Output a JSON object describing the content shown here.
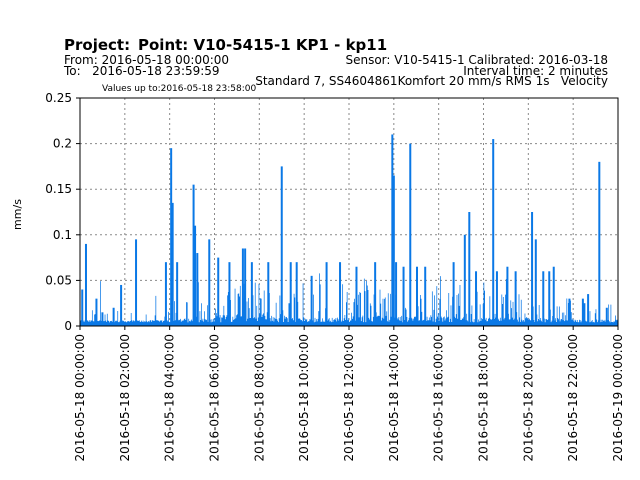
{
  "header": {
    "project_label": "Project:",
    "point_label": "Point: V10-5415-1 KP1 - kp11",
    "from_text": "From: 2016-05-18 00:00:00",
    "to_text": "To:   2016-05-18 23:59:59",
    "sensor_text": "Sensor: V10-5415-1  Calibrated:  2016-03-18",
    "interval_text": "Interval time: 2 minutes",
    "standard_text": "Standard 7, SS4604861Komfort 20 mm/s RMS 1s   Velocity",
    "values_up_to": "Values up to:2016-05-18 23:58:00"
  },
  "chart_data": {
    "type": "bar",
    "title": "",
    "ylabel": "mm/s",
    "xlabel": "",
    "ylim": [
      0,
      0.25
    ],
    "yticks": [
      "0",
      "0.05",
      "0.1",
      "0.15",
      "0.2",
      "0.25"
    ],
    "xticks": [
      "2016-05-18 00:00:00",
      "2016-05-18 02:00:00",
      "2016-05-18 04:00:00",
      "2016-05-18 06:00:00",
      "2016-05-18 08:00:00",
      "2016-05-18 10:00:00",
      "2016-05-18 12:00:00",
      "2016-05-18 14:00:00",
      "2016-05-18 16:00:00",
      "2016-05-18 18:00:00",
      "2016-05-18 20:00:00",
      "2016-05-18 22:00:00",
      "2016-05-19 00:00:00"
    ],
    "grid": true,
    "bar_color": "#0a78e6",
    "interval_minutes": 2,
    "peaks": [
      {
        "time": "2016-05-18 00:06:00",
        "value": 0.04
      },
      {
        "time": "2016-05-18 00:16:00",
        "value": 0.09
      },
      {
        "time": "2016-05-18 00:44:00",
        "value": 0.03
      },
      {
        "time": "2016-05-18 01:00:00",
        "value": 0.015
      },
      {
        "time": "2016-05-18 01:30:00",
        "value": 0.02
      },
      {
        "time": "2016-05-18 01:50:00",
        "value": 0.045
      },
      {
        "time": "2016-05-18 02:30:00",
        "value": 0.095
      },
      {
        "time": "2016-05-18 03:50:00",
        "value": 0.07
      },
      {
        "time": "2016-05-18 04:04:00",
        "value": 0.195
      },
      {
        "time": "2016-05-18 04:08:00",
        "value": 0.135
      },
      {
        "time": "2016-05-18 04:20:00",
        "value": 0.07
      },
      {
        "time": "2016-05-18 05:04:00",
        "value": 0.155
      },
      {
        "time": "2016-05-18 05:08:00",
        "value": 0.11
      },
      {
        "time": "2016-05-18 05:14:00",
        "value": 0.08
      },
      {
        "time": "2016-05-18 05:46:00",
        "value": 0.095
      },
      {
        "time": "2016-05-18 06:10:00",
        "value": 0.075
      },
      {
        "time": "2016-05-18 06:40:00",
        "value": 0.07
      },
      {
        "time": "2016-05-18 07:16:00",
        "value": 0.085
      },
      {
        "time": "2016-05-18 07:22:00",
        "value": 0.085
      },
      {
        "time": "2016-05-18 07:40:00",
        "value": 0.07
      },
      {
        "time": "2016-05-18 08:24:00",
        "value": 0.07
      },
      {
        "time": "2016-05-18 09:00:00",
        "value": 0.175
      },
      {
        "time": "2016-05-18 09:24:00",
        "value": 0.07
      },
      {
        "time": "2016-05-18 09:40:00",
        "value": 0.07
      },
      {
        "time": "2016-05-18 10:20:00",
        "value": 0.055
      },
      {
        "time": "2016-05-18 11:00:00",
        "value": 0.07
      },
      {
        "time": "2016-05-18 11:36:00",
        "value": 0.07
      },
      {
        "time": "2016-05-18 12:20:00",
        "value": 0.065
      },
      {
        "time": "2016-05-18 13:10:00",
        "value": 0.07
      },
      {
        "time": "2016-05-18 13:56:00",
        "value": 0.21
      },
      {
        "time": "2016-05-18 14:00:00",
        "value": 0.165
      },
      {
        "time": "2016-05-18 14:06:00",
        "value": 0.07
      },
      {
        "time": "2016-05-18 14:26:00",
        "value": 0.065
      },
      {
        "time": "2016-05-18 14:44:00",
        "value": 0.2
      },
      {
        "time": "2016-05-18 15:02:00",
        "value": 0.065
      },
      {
        "time": "2016-05-18 15:24:00",
        "value": 0.065
      },
      {
        "time": "2016-05-18 16:40:00",
        "value": 0.07
      },
      {
        "time": "2016-05-18 17:10:00",
        "value": 0.1
      },
      {
        "time": "2016-05-18 17:22:00",
        "value": 0.125
      },
      {
        "time": "2016-05-18 17:40:00",
        "value": 0.06
      },
      {
        "time": "2016-05-18 18:26:00",
        "value": 0.205
      },
      {
        "time": "2016-05-18 18:36:00",
        "value": 0.06
      },
      {
        "time": "2016-05-18 19:04:00",
        "value": 0.065
      },
      {
        "time": "2016-05-18 19:26:00",
        "value": 0.06
      },
      {
        "time": "2016-05-18 20:10:00",
        "value": 0.125
      },
      {
        "time": "2016-05-18 20:20:00",
        "value": 0.095
      },
      {
        "time": "2016-05-18 20:40:00",
        "value": 0.06
      },
      {
        "time": "2016-05-18 20:56:00",
        "value": 0.06
      },
      {
        "time": "2016-05-18 21:08:00",
        "value": 0.065
      },
      {
        "time": "2016-05-18 21:50:00",
        "value": 0.03
      },
      {
        "time": "2016-05-18 22:26:00",
        "value": 0.03
      },
      {
        "time": "2016-05-18 22:30:00",
        "value": 0.025
      },
      {
        "time": "2016-05-18 22:40:00",
        "value": 0.035
      },
      {
        "time": "2016-05-18 23:10:00",
        "value": 0.18
      },
      {
        "time": "2016-05-18 23:30:00",
        "value": 0.02
      }
    ]
  }
}
